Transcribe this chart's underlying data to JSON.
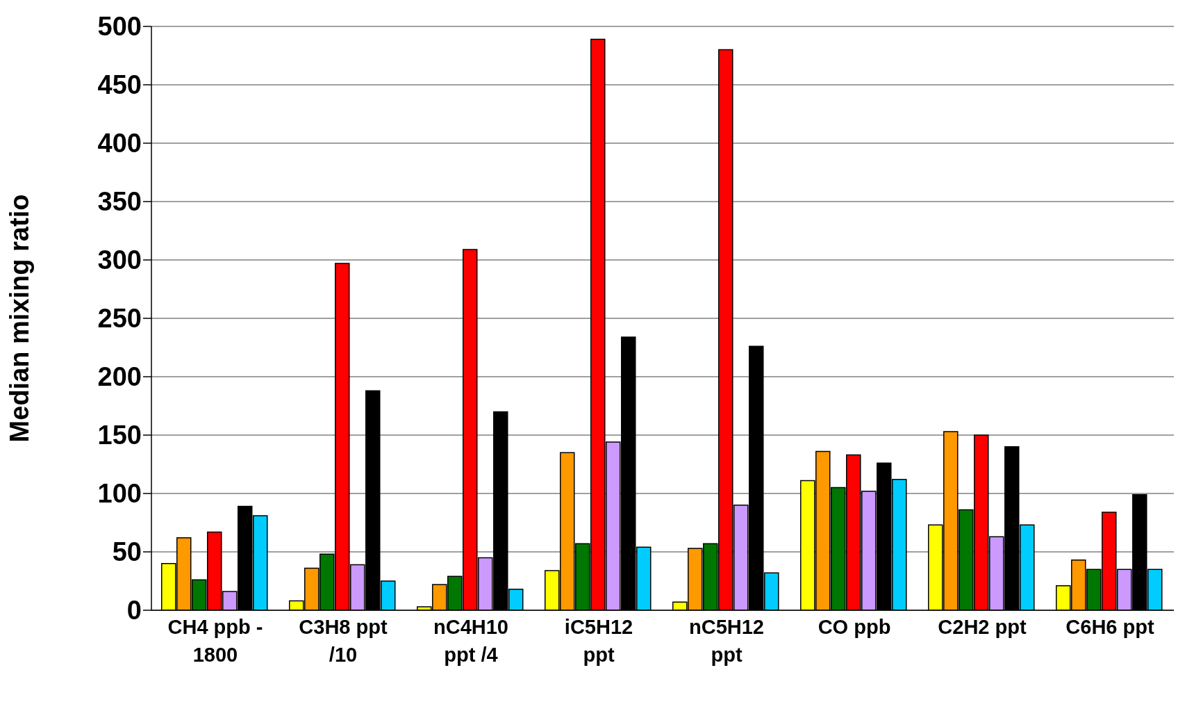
{
  "chart_data": {
    "type": "bar",
    "ylabel": "Median mixing ratio",
    "categories": [
      "CH4 ppb - 1800",
      "C3H8 ppt /10",
      "nC4H10 ppt /4",
      "iC5H12 ppt",
      "nC5H12 ppt",
      "CO ppb",
      "C2H2 ppt",
      "C6H6 ppt"
    ],
    "series": [
      {
        "color": "#ffff00",
        "values": [
          40,
          8,
          3,
          34,
          7,
          111,
          73,
          21
        ]
      },
      {
        "color": "#ff9900",
        "values": [
          62,
          36,
          22,
          135,
          53,
          136,
          153,
          43
        ]
      },
      {
        "color": "#007700",
        "values": [
          26,
          48,
          29,
          57,
          57,
          105,
          86,
          35
        ]
      },
      {
        "color": "#ff0000",
        "values": [
          67,
          297,
          309,
          489,
          480,
          133,
          150,
          84
        ]
      },
      {
        "color": "#cc99ff",
        "values": [
          16,
          39,
          45,
          144,
          90,
          102,
          63,
          35
        ]
      },
      {
        "color": "#000000",
        "values": [
          89,
          188,
          170,
          234,
          226,
          126,
          140,
          99
        ]
      },
      {
        "color": "#00ccff",
        "values": [
          81,
          25,
          18,
          54,
          32,
          112,
          73,
          35
        ]
      }
    ],
    "ylim": [
      0,
      500
    ],
    "yticks": [
      0,
      50,
      100,
      150,
      200,
      250,
      300,
      350,
      400,
      450,
      500
    ],
    "grid": "y",
    "legend": false
  }
}
